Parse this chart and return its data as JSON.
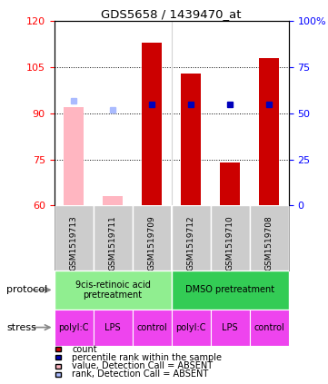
{
  "title": "GDS5658 / 1439470_at",
  "samples": [
    "GSM1519713",
    "GSM1519711",
    "GSM1519709",
    "GSM1519712",
    "GSM1519710",
    "GSM1519708"
  ],
  "count_present": [
    null,
    null,
    113,
    103,
    74,
    108
  ],
  "count_absent": [
    92,
    63,
    null,
    null,
    null,
    null
  ],
  "rank_present": [
    null,
    null,
    55,
    55,
    55,
    55
  ],
  "rank_absent": [
    57,
    52,
    null,
    null,
    null,
    null
  ],
  "ylim_left": [
    60,
    120
  ],
  "ylim_right": [
    0,
    100
  ],
  "yticks_left": [
    60,
    75,
    90,
    105,
    120
  ],
  "yticks_right": [
    0,
    25,
    50,
    75,
    100
  ],
  "protocol1_color": "#90EE90",
  "protocol2_color": "#33CC55",
  "protocol1_label": "9cis-retinoic acid\npretreatment",
  "protocol2_label": "DMSO pretreatment",
  "stress_color": "#EE44EE",
  "stresses": [
    "polyI:C",
    "LPS",
    "control",
    "polyI:C",
    "LPS",
    "control"
  ],
  "bar_color_present": "#CC0000",
  "bar_color_absent": "#FFB6C1",
  "rank_color_present": "#0000BB",
  "rank_color_absent": "#AABBFF",
  "bar_width": 0.5,
  "legend_items": [
    {
      "color": "#CC0000",
      "label": "count"
    },
    {
      "color": "#0000BB",
      "label": "percentile rank within the sample"
    },
    {
      "color": "#FFB6C1",
      "label": "value, Detection Call = ABSENT"
    },
    {
      "color": "#AABBFF",
      "label": "rank, Detection Call = ABSENT"
    }
  ]
}
